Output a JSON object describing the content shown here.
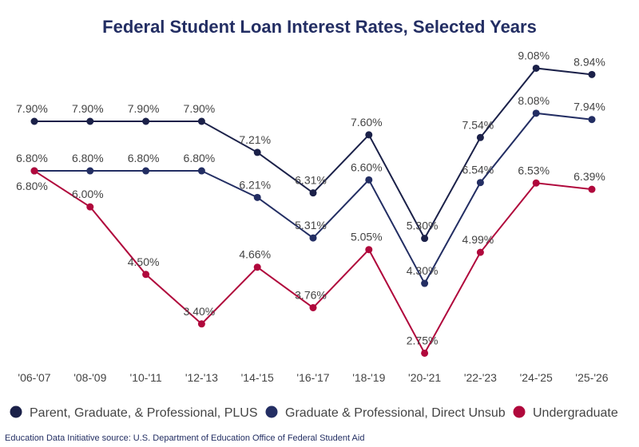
{
  "chart_data": {
    "type": "line",
    "title": "Federal Student Loan Interest Rates, Selected Years",
    "xlabel": "",
    "ylabel": "",
    "categories": [
      "'06-'07",
      "'08-'09",
      "'10-'11",
      "'12-'13",
      "'14-'15",
      "'16-'17",
      "'18-'19",
      "'20-'21",
      "'22-'23",
      "'24-'25",
      "'25-'26"
    ],
    "ylim": [
      2.5,
      9.3
    ],
    "grid": false,
    "legend_position": "bottom",
    "series": [
      {
        "name": "Parent, Graduate, & Professional, PLUS",
        "color": "#1b2149",
        "values": [
          7.9,
          7.9,
          7.9,
          7.9,
          7.21,
          6.31,
          7.6,
          5.3,
          7.54,
          9.08,
          8.94
        ]
      },
      {
        "name": "Graduate & Professional, Direct Unsub",
        "color": "#232e63",
        "values": [
          6.8,
          6.8,
          6.8,
          6.8,
          6.21,
          5.31,
          6.6,
          4.3,
          6.54,
          8.08,
          7.94
        ]
      },
      {
        "name": "Undergraduate",
        "color": "#b0083c",
        "values": [
          6.8,
          6.0,
          4.5,
          3.4,
          4.66,
          3.76,
          5.05,
          2.75,
          4.99,
          6.53,
          6.39
        ]
      }
    ],
    "source": "Education Data Initiative source: U.S. Department of Education Office of Federal Student Aid"
  }
}
